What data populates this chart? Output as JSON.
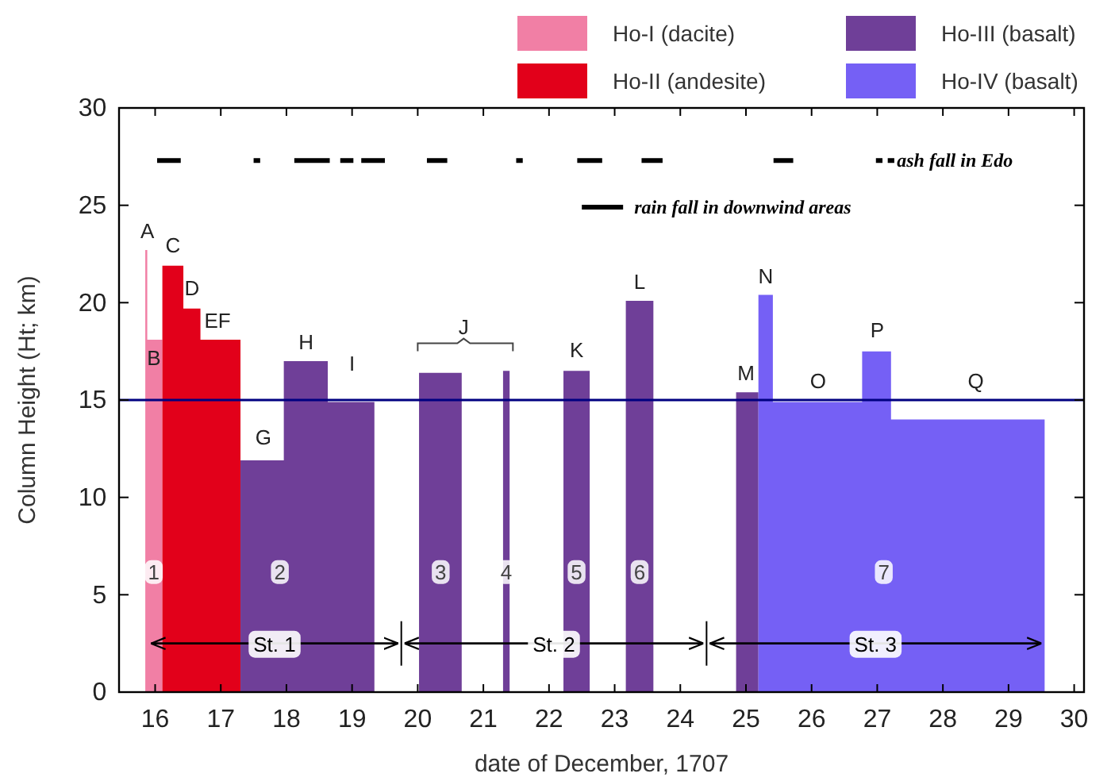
{
  "chart_data": {
    "type": "area",
    "xlabel": "date of December, 1707",
    "ylabel": "Column Height (Ht; km)",
    "xlim": [
      15.45,
      30.15
    ],
    "xticks": [
      16,
      17,
      18,
      19,
      20,
      21,
      22,
      23,
      24,
      25,
      26,
      27,
      28,
      29,
      30
    ],
    "ylim": [
      0,
      30
    ],
    "yticks": [
      0,
      5,
      10,
      15,
      20,
      25,
      30
    ],
    "legend": "top right",
    "series": [
      {
        "name": "Ho-I (dacite)",
        "color": "#f17fa5",
        "x": [
          15.85,
          15.85,
          15.88,
          15.88,
          16.11,
          16.11
        ],
        "values": [
          0,
          22.7,
          22.7,
          18.1,
          18.1,
          0
        ]
      },
      {
        "name": "Ho-II (andesite)",
        "color": "#e2001a",
        "x": [
          16.11,
          16.11,
          16.43,
          16.43,
          16.69,
          16.69,
          17.3,
          17.3
        ],
        "values": [
          0,
          21.9,
          21.9,
          19.7,
          19.7,
          18.1,
          18.1,
          0
        ]
      },
      {
        "name": "Ho-III (basalt)",
        "color": "#6f3f98",
        "x": [
          17.3,
          17.3,
          17.96,
          17.96,
          18.63,
          18.63,
          19.34,
          19.34,
          19.7,
          20.02,
          20.02,
          20.67,
          20.67,
          21.0,
          21.3,
          21.3,
          21.4,
          21.4,
          21.8,
          22.22,
          22.22,
          22.62,
          22.62,
          22.9,
          23.17,
          23.17,
          23.59,
          23.59,
          24.2,
          24.85,
          24.85,
          25.19,
          25.19
        ],
        "values": [
          0,
          11.9,
          11.9,
          17.0,
          17.0,
          14.9,
          14.9,
          0,
          null,
          0,
          16.4,
          16.4,
          0,
          null,
          0,
          16.5,
          16.5,
          0,
          null,
          0,
          16.5,
          16.5,
          0,
          null,
          0,
          20.1,
          20.1,
          0,
          null,
          0,
          15.4,
          15.4,
          0
        ]
      },
      {
        "name": "Ho-IV (basalt)",
        "color": "#7560f5",
        "x": [
          25.19,
          25.19,
          25.41,
          25.41,
          26.77,
          26.77,
          27.21,
          27.21,
          29.55,
          29.55
        ],
        "values": [
          0,
          20.4,
          20.4,
          14.9,
          14.9,
          17.5,
          17.5,
          14.0,
          14.0,
          0
        ]
      },
      {
        "type": "line",
        "name": "rain fall in downwind areas",
        "color": "#000000",
        "x": [
          16.03,
          16.39,
          16.5,
          17.5,
          17.6,
          17.8,
          18.12,
          18.66,
          18.74,
          18.82,
          19.02,
          19.08,
          19.14,
          19.5,
          19.8,
          20.14,
          20.45,
          21.0,
          21.5,
          21.6,
          22.0,
          22.43,
          22.81,
          23.1,
          23.41,
          23.73,
          24.5,
          25.42,
          25.72,
          26.5,
          26.98,
          27.08,
          27.12,
          27.16,
          27.26
        ],
        "values": [
          27.3,
          27.3,
          null,
          27.3,
          27.3,
          null,
          27.3,
          27.3,
          null,
          27.3,
          27.3,
          null,
          27.3,
          27.3,
          null,
          27.3,
          27.3,
          null,
          27.3,
          27.3,
          null,
          27.3,
          27.3,
          null,
          27.3,
          27.3,
          null,
          27.3,
          27.3,
          null,
          27.3,
          27.3,
          null,
          27.3,
          27.3
        ]
      }
    ],
    "ref_lines": [
      {
        "axis": "y",
        "value": 15,
        "color": "#000080"
      }
    ],
    "annotations": [
      "ash fall in Edo",
      "A",
      "B",
      "C",
      "D",
      "EF",
      "G",
      "H",
      "I",
      "J",
      "K",
      "L",
      "M",
      "N",
      "O",
      "P",
      "Q",
      "1",
      "2",
      "3",
      "4",
      "5",
      "6",
      "7",
      "St. 1",
      "St. 2",
      "St. 3"
    ]
  }
}
